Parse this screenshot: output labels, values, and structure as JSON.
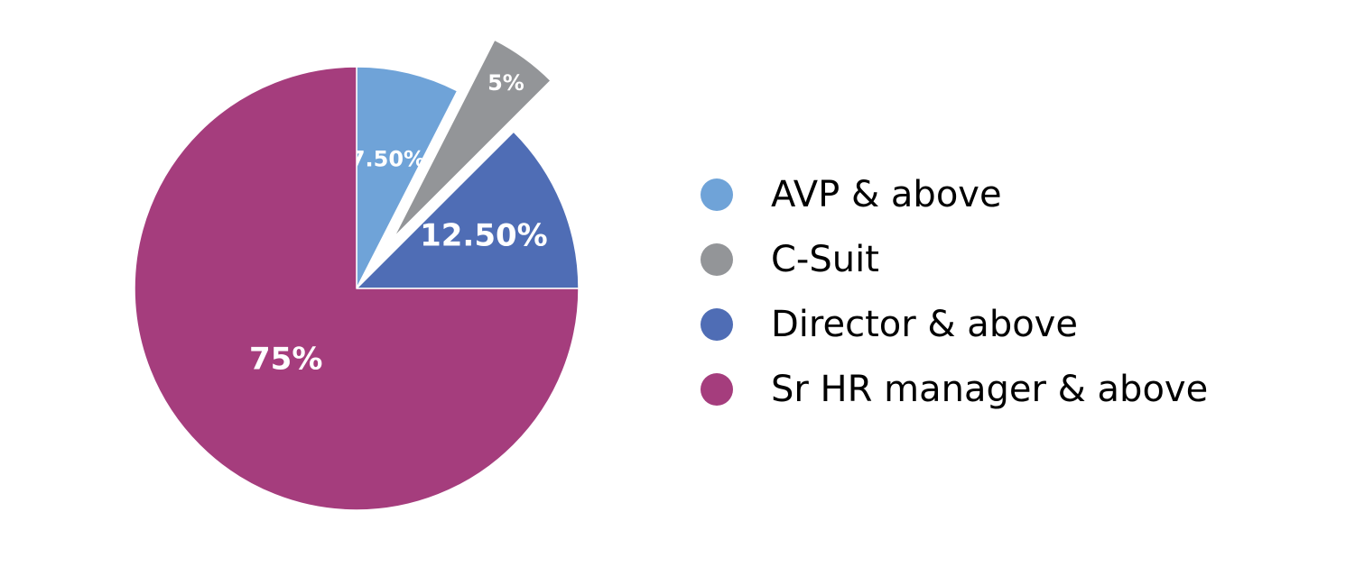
{
  "chart_data": {
    "type": "pie",
    "slices": [
      {
        "name": "AVP & above",
        "value": 7.5,
        "label": "7.50%",
        "color": "#6fa3d8",
        "exploded": false
      },
      {
        "name": "C-Suit",
        "value": 5,
        "label": "5%",
        "color": "#939598",
        "exploded": true
      },
      {
        "name": "Director & above",
        "value": 12.5,
        "label": "12.50%",
        "color": "#4f6db5",
        "exploded": false
      },
      {
        "name": "Sr HR manager & above",
        "value": 75,
        "label": "75%",
        "color": "#a53d7d",
        "exploded": false
      }
    ],
    "legend_position": "right",
    "start_angle": "12 o'clock",
    "direction": "clockwise"
  },
  "legend": {
    "items": [
      {
        "label": "AVP & above",
        "color": "#6fa3d8"
      },
      {
        "label": "C-Suit",
        "color": "#939598"
      },
      {
        "label": "Director & above",
        "color": "#4f6db5"
      },
      {
        "label": "Sr HR manager & above",
        "color": "#a53d7d"
      }
    ]
  }
}
